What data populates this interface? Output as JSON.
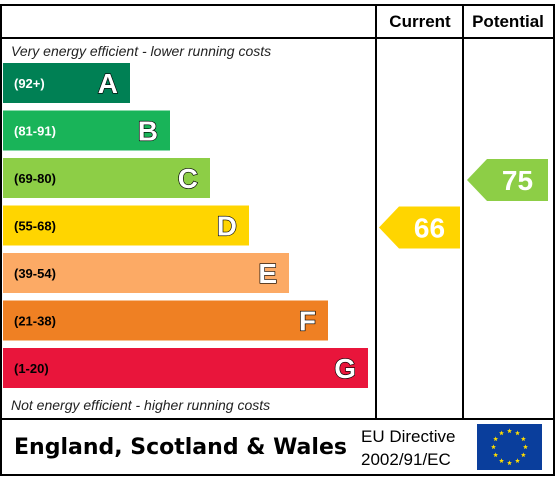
{
  "header": {
    "current_label": "Current",
    "potential_label": "Potential"
  },
  "top_note": "Very energy efficient - lower running costs",
  "bottom_note": "Not energy efficient - higher running costs",
  "footer": {
    "region": "England, Scotland & Wales",
    "directive_line1": "EU Directive",
    "directive_line2": "2002/91/EC",
    "flag_icon": "eu-flag-icon"
  },
  "chart_data": {
    "type": "bar",
    "title": "",
    "bands": [
      {
        "letter": "A",
        "range": "(92+)",
        "min": 92,
        "max": 100,
        "color": "#008054",
        "range_color": "#ffffff"
      },
      {
        "letter": "B",
        "range": "(81-91)",
        "min": 81,
        "max": 91,
        "color": "#19b459",
        "range_color": "#ffffff"
      },
      {
        "letter": "C",
        "range": "(69-80)",
        "min": 69,
        "max": 80,
        "color": "#8dce46",
        "range_color": "#000000"
      },
      {
        "letter": "D",
        "range": "(55-68)",
        "min": 55,
        "max": 68,
        "color": "#ffd500",
        "range_color": "#000000"
      },
      {
        "letter": "E",
        "range": "(39-54)",
        "min": 39,
        "max": 54,
        "color": "#fcaa65",
        "range_color": "#000000"
      },
      {
        "letter": "F",
        "range": "(21-38)",
        "min": 21,
        "max": 38,
        "color": "#ef8023",
        "range_color": "#000000"
      },
      {
        "letter": "G",
        "range": "(1-20)",
        "min": 1,
        "max": 20,
        "color": "#e9153b",
        "range_color": "#000000"
      }
    ],
    "current": {
      "value": 66,
      "band": "D",
      "color": "#ffd500"
    },
    "potential": {
      "value": 75,
      "band": "C",
      "color": "#8dce46"
    }
  }
}
